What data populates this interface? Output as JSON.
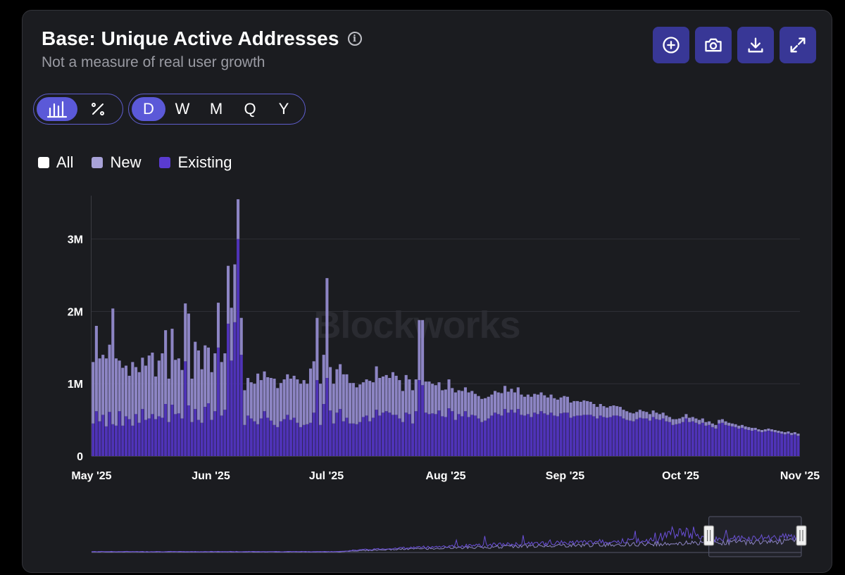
{
  "title": "Base: Unique Active Addresses",
  "subtitle": "Not a measure of real user growth",
  "watermark": "Blockworks",
  "toolbar": {
    "buttons": [
      {
        "name": "add-button",
        "icon": "plus-circle-icon"
      },
      {
        "name": "screenshot-button",
        "icon": "camera-icon"
      },
      {
        "name": "download-button",
        "icon": "download-icon"
      },
      {
        "name": "fullscreen-button",
        "icon": "expand-icon"
      }
    ]
  },
  "chart_type_toggle": {
    "options": [
      {
        "icon": "bar-chart-icon",
        "active": true
      },
      {
        "icon": "percent-icon",
        "active": false
      }
    ]
  },
  "period_toggle": {
    "options": [
      {
        "label": "D",
        "active": true
      },
      {
        "label": "W",
        "active": false
      },
      {
        "label": "M",
        "active": false
      },
      {
        "label": "Q",
        "active": false
      },
      {
        "label": "Y",
        "active": false
      }
    ]
  },
  "legend": [
    {
      "label": "All",
      "color": "#ffffff"
    },
    {
      "label": "New",
      "color": "#a8a2d8"
    },
    {
      "label": "Existing",
      "color": "#5a3bd0"
    }
  ],
  "colors": {
    "new": "#8d85c4",
    "existing": "#4f33b8",
    "grid": "#2e2f35",
    "accent": "#5b59d8"
  },
  "chart_data": {
    "type": "bar",
    "stacked": true,
    "ylim": [
      0,
      3600000
    ],
    "y_ticks": [
      {
        "value": 0,
        "label": "0"
      },
      {
        "value": 1000000,
        "label": "1M"
      },
      {
        "value": 2000000,
        "label": "2M"
      },
      {
        "value": 3000000,
        "label": "3M"
      }
    ],
    "x_ticks": [
      {
        "date": "2025-05-01",
        "label": "May '25"
      },
      {
        "date": "2025-06-01",
        "label": "Jun '25"
      },
      {
        "date": "2025-07-01",
        "label": "Jul '25"
      },
      {
        "date": "2025-08-01",
        "label": "Aug '25"
      },
      {
        "date": "2025-09-01",
        "label": "Sep '25"
      },
      {
        "date": "2025-10-01",
        "label": "Oct '25"
      },
      {
        "date": "2025-11-01",
        "label": "Nov '25"
      }
    ],
    "start_date": "2025-05-01",
    "series": [
      {
        "name": "Existing",
        "values": [
          450000,
          620000,
          480000,
          570000,
          410000,
          610000,
          440000,
          420000,
          620000,
          420000,
          550000,
          510000,
          420000,
          580000,
          460000,
          650000,
          500000,
          520000,
          580000,
          510000,
          550000,
          530000,
          720000,
          470000,
          710000,
          580000,
          590000,
          520000,
          1310000,
          700000,
          470000,
          650000,
          500000,
          460000,
          680000,
          730000,
          500000,
          620000,
          1500000,
          560000,
          640000,
          1830000,
          1320000,
          1850000,
          3000000,
          1400000,
          430000,
          560000,
          520000,
          480000,
          440000,
          520000,
          620000,
          530000,
          490000,
          430000,
          400000,
          480000,
          510000,
          570000,
          500000,
          530000,
          460000,
          400000,
          430000,
          440000,
          460000,
          600000,
          1050000,
          430000,
          720000,
          1080000,
          630000,
          450000,
          600000,
          650000,
          480000,
          530000,
          450000,
          450000,
          440000,
          470000,
          540000,
          560000,
          480000,
          530000,
          640000,
          560000,
          600000,
          620000,
          600000,
          570000,
          570000,
          520000,
          470000,
          600000,
          580000,
          450000,
          620000,
          1050000,
          980000,
          600000,
          580000,
          590000,
          580000,
          630000,
          550000,
          540000,
          660000,
          620000,
          500000,
          580000,
          550000,
          620000,
          540000,
          570000,
          560000,
          520000,
          470000,
          490000,
          520000,
          560000,
          600000,
          580000,
          560000,
          650000,
          600000,
          640000,
          600000,
          650000,
          570000,
          560000,
          580000,
          540000,
          600000,
          580000,
          620000,
          590000,
          570000,
          600000,
          560000,
          550000,
          590000,
          600000,
          600000,
          530000,
          550000,
          560000,
          560000,
          570000,
          570000,
          570000,
          550000,
          520000,
          560000,
          540000,
          530000,
          540000,
          560000,
          560000,
          550000,
          520000,
          500000,
          490000,
          480000,
          510000,
          530000,
          520000,
          520000,
          490000,
          540000,
          510000,
          500000,
          520000,
          480000,
          470000,
          430000,
          440000,
          450000,
          470000,
          520000,
          470000,
          480000,
          460000,
          440000,
          460000,
          420000,
          430000,
          400000,
          380000,
          450000,
          460000,
          430000,
          420000,
          410000,
          400000,
          380000,
          390000,
          370000,
          360000,
          350000,
          360000,
          340000,
          330000,
          340000,
          350000,
          340000,
          330000,
          320000,
          310000,
          300000,
          310000,
          290000,
          300000,
          280000
        ]
      },
      {
        "name": "New",
        "values": [
          850000,
          1180000,
          870000,
          830000,
          940000,
          930000,
          1600000,
          930000,
          700000,
          800000,
          700000,
          600000,
          880000,
          650000,
          700000,
          710000,
          750000,
          870000,
          850000,
          590000,
          770000,
          890000,
          1020000,
          600000,
          1050000,
          750000,
          760000,
          670000,
          800000,
          1270000,
          600000,
          930000,
          960000,
          740000,
          850000,
          770000,
          660000,
          800000,
          620000,
          740000,
          780000,
          800000,
          730000,
          800000,
          550000,
          510000,
          480000,
          520000,
          500000,
          520000,
          700000,
          530000,
          550000,
          560000,
          590000,
          640000,
          540000,
          530000,
          550000,
          560000,
          570000,
          580000,
          600000,
          600000,
          620000,
          560000,
          750000,
          710000,
          860000,
          570000,
          680000,
          1380000,
          600000,
          550000,
          600000,
          620000,
          650000,
          600000,
          560000,
          560000,
          510000,
          520000,
          480000,
          500000,
          560000,
          490000,
          600000,
          520000,
          500000,
          500000,
          480000,
          590000,
          540000,
          530000,
          430000,
          520000,
          480000,
          460000,
          440000,
          830000,
          900000,
          430000,
          450000,
          410000,
          400000,
          390000,
          360000,
          380000,
          400000,
          320000,
          380000,
          330000,
          350000,
          330000,
          340000,
          330000,
          300000,
          310000,
          320000,
          310000,
          300000,
          290000,
          300000,
          300000,
          310000,
          320000,
          290000,
          290000,
          280000,
          300000,
          280000,
          260000,
          270000,
          280000,
          260000,
          270000,
          260000,
          250000,
          240000,
          250000,
          240000,
          230000,
          220000,
          230000,
          220000,
          210000,
          210000,
          200000,
          190000,
          200000,
          190000,
          180000,
          170000,
          160000,
          160000,
          150000,
          140000,
          150000,
          140000,
          130000,
          130000,
          120000,
          120000,
          110000,
          110000,
          100000,
          110000,
          100000,
          90000,
          90000,
          90000,
          90000,
          80000,
          80000,
          80000,
          70000,
          80000,
          70000,
          70000,
          70000,
          60000,
          60000,
          60000,
          60000,
          60000,
          60000,
          50000,
          50000,
          50000,
          50000,
          50000,
          50000,
          50000,
          40000,
          40000,
          40000,
          40000,
          40000,
          40000,
          40000,
          40000,
          30000,
          30000,
          30000,
          30000,
          30000,
          30000,
          30000,
          30000,
          30000,
          30000,
          30000,
          30000,
          30000,
          30000,
          30000
        ]
      }
    ]
  },
  "navigator": {
    "handle_left_icon": "drag-handle-icon",
    "handle_right_icon": "drag-handle-icon",
    "selection": [
      0.83,
      1.0
    ]
  }
}
